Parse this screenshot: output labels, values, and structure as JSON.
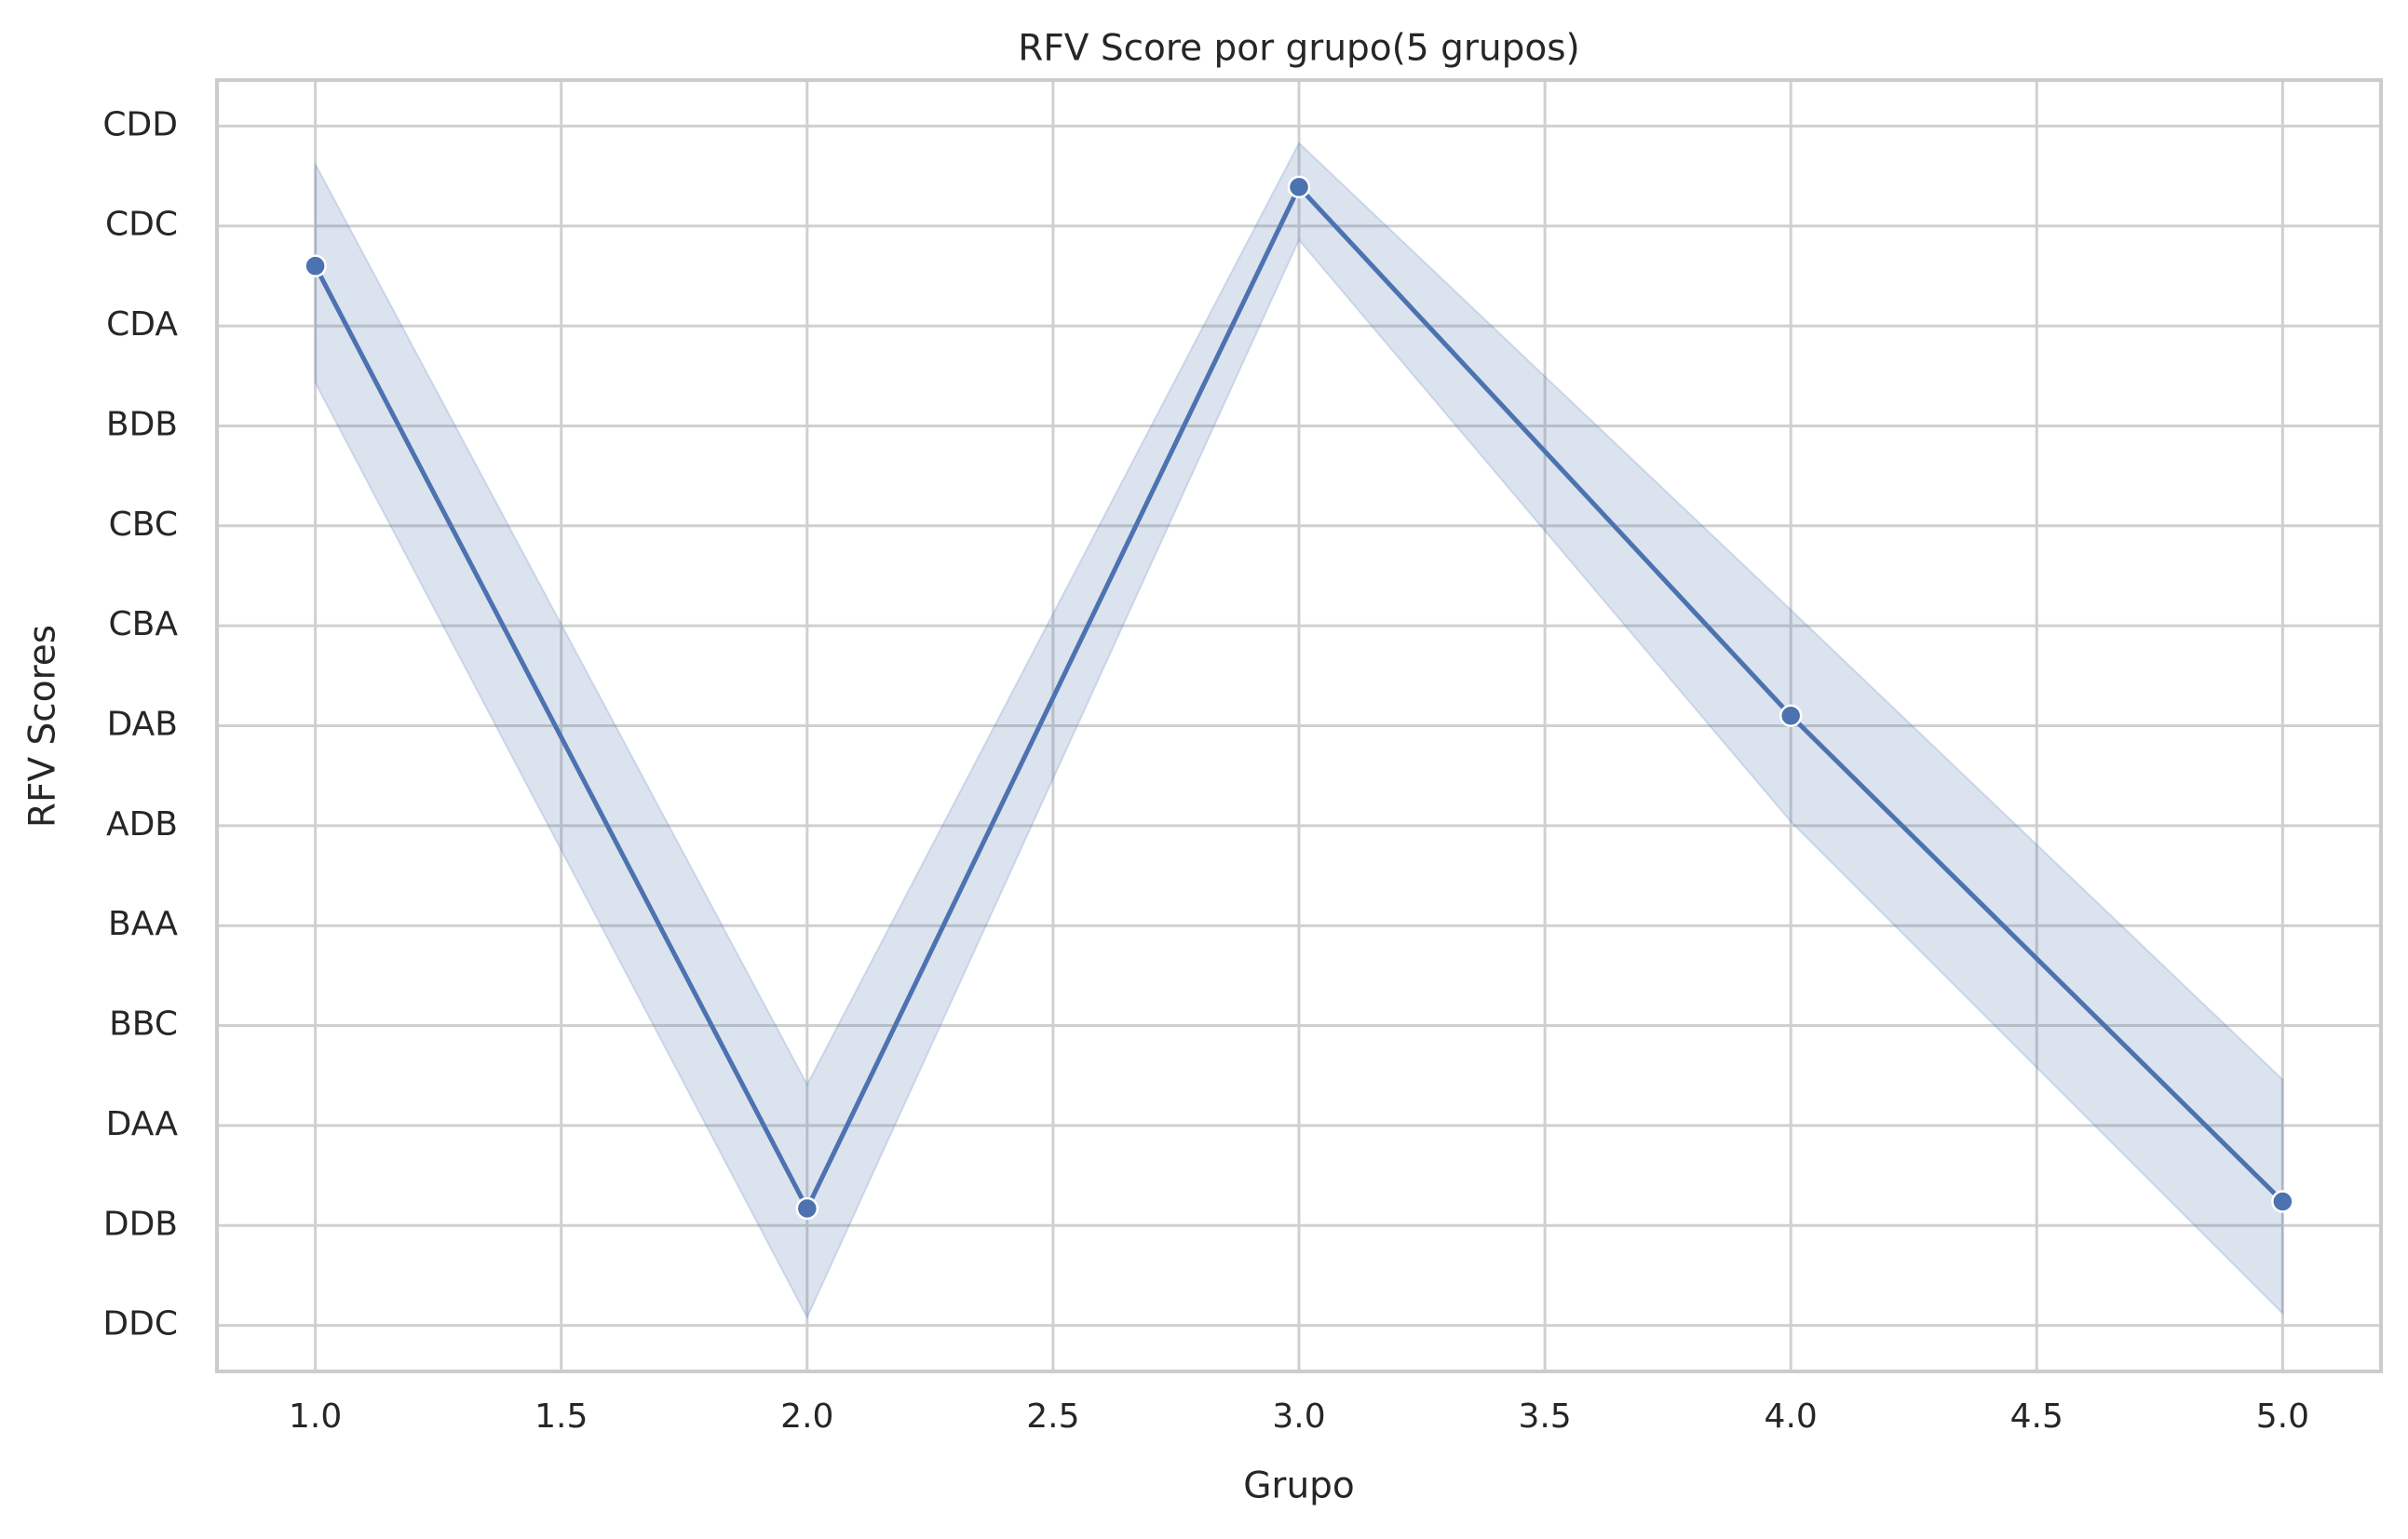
{
  "chart_data": {
    "type": "line",
    "title": "RFV Score por grupo(5 grupos)",
    "x_label": "Grupo",
    "y_label": "RFV Scores",
    "x": [
      1,
      2,
      3,
      4,
      5
    ],
    "values": [
      10.6,
      1.17,
      11.39,
      6.1,
      1.24
    ],
    "band_lower": [
      9.43,
      0.08,
      10.86,
      5.04,
      0.12
    ],
    "band_upper": [
      11.62,
      2.41,
      11.83,
      7.16,
      2.46
    ],
    "color": "#4c72b0",
    "xlim": [
      0.8,
      5.2
    ],
    "xticks": [
      {
        "value": 1,
        "label": "1.0"
      },
      {
        "value": 1.5,
        "label": "1.5"
      },
      {
        "value": 2,
        "label": "2.0"
      },
      {
        "value": 2.5,
        "label": "2.5"
      },
      {
        "value": 3,
        "label": "3.0"
      },
      {
        "value": 3.5,
        "label": "3.5"
      },
      {
        "value": 4,
        "label": "4.0"
      },
      {
        "value": 4.5,
        "label": "4.5"
      },
      {
        "value": 5,
        "label": "5.0"
      }
    ],
    "ylim": [
      -0.46,
      12.46
    ],
    "yticks": [
      {
        "value": 0,
        "label": "DDC"
      },
      {
        "value": 1,
        "label": "DDB"
      },
      {
        "value": 2,
        "label": "DAA"
      },
      {
        "value": 3,
        "label": "BBC"
      },
      {
        "value": 4,
        "label": "BAA"
      },
      {
        "value": 5,
        "label": "ADB"
      },
      {
        "value": 6,
        "label": "DAB"
      },
      {
        "value": 7,
        "label": "CBA"
      },
      {
        "value": 8,
        "label": "CBC"
      },
      {
        "value": 9,
        "label": "BDB"
      },
      {
        "value": 10,
        "label": "CDA"
      },
      {
        "value": 11,
        "label": "CDC"
      },
      {
        "value": 12,
        "label": "CDD"
      }
    ],
    "grid": true
  }
}
